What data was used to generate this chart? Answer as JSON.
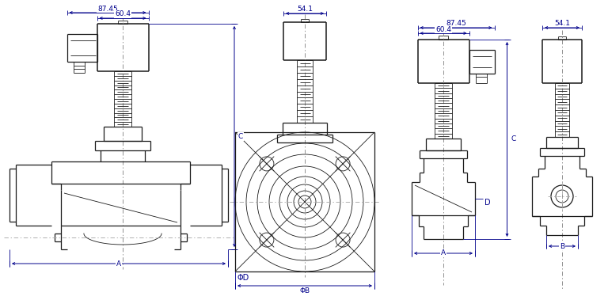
{
  "bg_color": "#ffffff",
  "line_color": "#1a1a1a",
  "dim_color": "#00008B",
  "figsize": [
    7.68,
    3.79
  ],
  "dpi": 100,
  "labels": {
    "87_45": "87.45",
    "60_4": "60.4",
    "54_1": "54.1",
    "C": "C",
    "A": "A",
    "phiD": "ΦD",
    "phiB": "ΦB",
    "D": "D",
    "B": "B"
  }
}
